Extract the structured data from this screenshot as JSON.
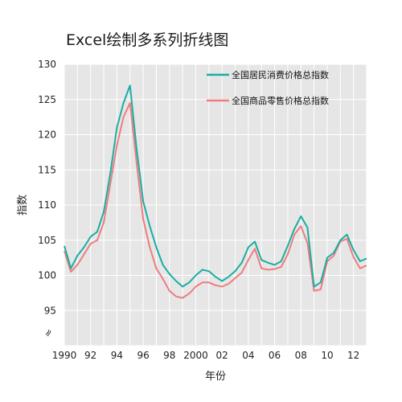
{
  "chart_data": {
    "type": "line",
    "title": "Excel绘制多系列折线图",
    "xlabel": "年份",
    "ylabel": "指数",
    "x_tick_labels": [
      "1990",
      "92",
      "94",
      "96",
      "98",
      "2000",
      "02",
      "04",
      "06",
      "08",
      "10",
      "12"
    ],
    "x_ticks": [
      1990,
      1992,
      1994,
      1996,
      1998,
      2000,
      2002,
      2004,
      2006,
      2008,
      2010,
      2012
    ],
    "y_tick_labels": [
      "95",
      "100",
      "105",
      "110",
      "115",
      "120",
      "125",
      "130"
    ],
    "y_ticks": [
      95,
      100,
      105,
      110,
      115,
      120,
      125,
      130
    ],
    "axis_break_symbol": "≈",
    "xlim": [
      1990,
      2013
    ],
    "ylim": [
      90,
      130
    ],
    "grid": true,
    "legend_position": "top-right",
    "x": [
      1990,
      1990.5,
      1991,
      1991.5,
      1992,
      1992.5,
      1993,
      1993.5,
      1994,
      1994.5,
      1995,
      1995.5,
      1996,
      1996.5,
      1997,
      1997.5,
      1998,
      1998.5,
      1999,
      1999.5,
      2000,
      2000.5,
      2001,
      2001.5,
      2002,
      2002.5,
      2003,
      2003.5,
      2004,
      2004.5,
      2005,
      2005.5,
      2006,
      2006.5,
      2007,
      2007.5,
      2008,
      2008.5,
      2009,
      2009.5,
      2010,
      2010.5,
      2011,
      2011.5,
      2012,
      2012.5,
      2013
    ],
    "series": [
      {
        "name": "全国居民消费价格总指数",
        "color": "#1aada3",
        "values": [
          104.2,
          101.0,
          102.8,
          104.0,
          105.5,
          106.2,
          109.0,
          114.5,
          121.0,
          124.5,
          127.0,
          118.0,
          110.5,
          107.0,
          104.0,
          101.5,
          100.2,
          99.2,
          98.4,
          99.0,
          100.0,
          100.8,
          100.6,
          99.8,
          99.2,
          99.8,
          100.6,
          101.8,
          104.0,
          104.8,
          102.2,
          101.8,
          101.5,
          102.0,
          104.2,
          106.6,
          108.4,
          106.8,
          98.4,
          99.0,
          102.5,
          103.2,
          105.0,
          105.8,
          103.6,
          102.0,
          102.4
        ]
      },
      {
        "name": "全国商品零售价格总指数",
        "color": "#ef7c7f",
        "values": [
          103.5,
          100.5,
          101.5,
          103.0,
          104.5,
          105.0,
          107.5,
          113.0,
          118.5,
          122.5,
          124.5,
          116.0,
          108.0,
          104.0,
          101.0,
          99.5,
          97.8,
          97.0,
          96.8,
          97.4,
          98.4,
          99.0,
          99.0,
          98.6,
          98.4,
          98.8,
          99.6,
          100.4,
          102.2,
          103.8,
          101.0,
          100.8,
          100.9,
          101.2,
          103.0,
          105.8,
          107.0,
          104.6,
          97.8,
          98.0,
          102.0,
          102.8,
          104.8,
          105.2,
          102.6,
          101.0,
          101.4
        ]
      }
    ]
  }
}
